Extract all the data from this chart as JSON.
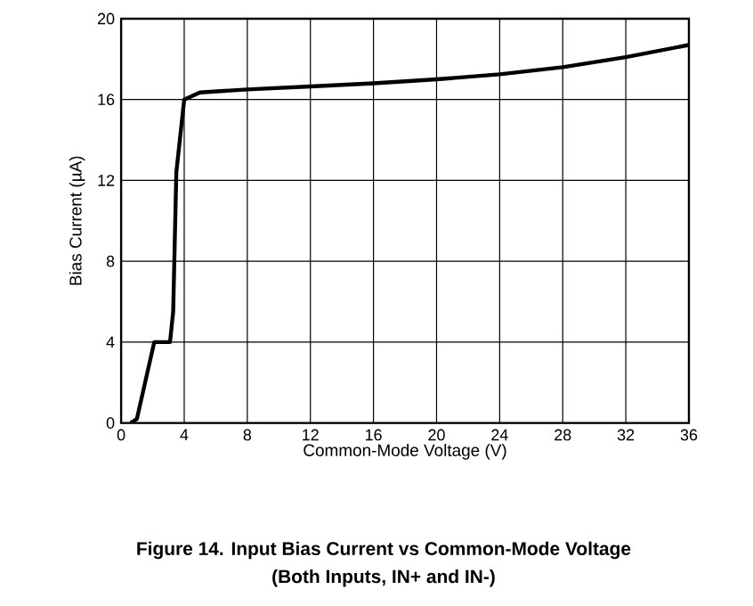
{
  "chart_data": {
    "type": "line",
    "title": "Figure 14. Input Bias Current vs Common-Mode Voltage",
    "subtitle": "(Both Inputs, IN+ and IN-)",
    "xlabel": "Common-Mode Voltage (V)",
    "ylabel": "Bias Current (µA)",
    "xlim": [
      0,
      36
    ],
    "ylim": [
      0,
      20
    ],
    "xticks": [
      0,
      4,
      8,
      12,
      16,
      20,
      24,
      28,
      32,
      36
    ],
    "yticks": [
      0,
      4,
      8,
      12,
      16,
      20
    ],
    "grid": true,
    "marker": "none",
    "line_style": "solid",
    "series": [
      {
        "color": "#000000",
        "x": [
          0.6,
          1.0,
          2.1,
          3.1,
          3.3,
          3.5,
          4.0,
          5.0,
          8,
          12,
          16,
          20,
          24,
          28,
          32,
          36
        ],
        "values": [
          0,
          0.2,
          4,
          4,
          5.5,
          12.4,
          16.0,
          16.35,
          16.5,
          16.65,
          16.8,
          17.0,
          17.25,
          17.6,
          18.1,
          18.7
        ]
      }
    ]
  }
}
